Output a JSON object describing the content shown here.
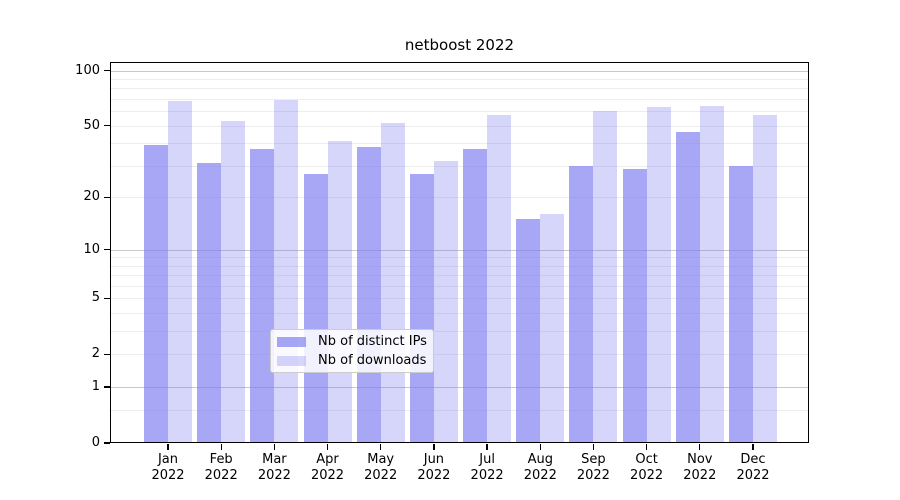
{
  "title": "netboost 2022",
  "legend": {
    "items": [
      {
        "label": "Nb of distinct IPs"
      },
      {
        "label": "Nb of downloads"
      }
    ]
  },
  "y_axis": {
    "tick_labels": [
      "100",
      "50",
      "20",
      "10",
      "5",
      "2",
      "1",
      "0"
    ],
    "tick_values": [
      100,
      50,
      20,
      10,
      5,
      2,
      1,
      0
    ]
  },
  "x_axis": {
    "months": [
      "Jan",
      "Feb",
      "Mar",
      "Apr",
      "May",
      "Jun",
      "Jul",
      "Aug",
      "Sep",
      "Oct",
      "Nov",
      "Dec"
    ],
    "year": "2022"
  },
  "colors": {
    "bar_distinct_ips": "rgba(120,120,240,0.65)",
    "bar_downloads": "rgba(120,120,240,0.30)",
    "grid_minor": "#ededed",
    "grid_major": "#c9c9c9",
    "spine": "#000000"
  },
  "chart_data": {
    "type": "bar",
    "title": "netboost 2022",
    "categories": [
      "Jan 2022",
      "Feb 2022",
      "Mar 2022",
      "Apr 2022",
      "May 2022",
      "Jun 2022",
      "Jul 2022",
      "Aug 2022",
      "Sep 2022",
      "Oct 2022",
      "Nov 2022",
      "Dec 2022"
    ],
    "series": [
      {
        "name": "Nb of distinct IPs",
        "values": [
          39,
          31,
          37,
          27,
          38,
          27,
          37,
          15,
          30,
          29,
          46,
          30
        ],
        "color": "rgba(120,120,240,0.65)"
      },
      {
        "name": "Nb of downloads",
        "values": [
          68,
          53,
          69,
          41,
          52,
          32,
          57,
          16,
          60,
          63,
          64,
          57
        ],
        "color": "rgba(120,120,240,0.30)"
      }
    ],
    "xlabel": "",
    "ylabel": "",
    "yscale": "symlog_log1p",
    "ylim": [
      0,
      112
    ],
    "y_ticks": [
      0,
      1,
      2,
      5,
      10,
      20,
      50,
      100
    ],
    "y_major_gridlines": [
      1,
      10,
      100
    ],
    "y_minor_gridlines": [
      0.5,
      2,
      3,
      4,
      5,
      6,
      7,
      8,
      9,
      20,
      30,
      40,
      50,
      60,
      70,
      80,
      90
    ],
    "grid": true,
    "legend_position": "lower center"
  }
}
